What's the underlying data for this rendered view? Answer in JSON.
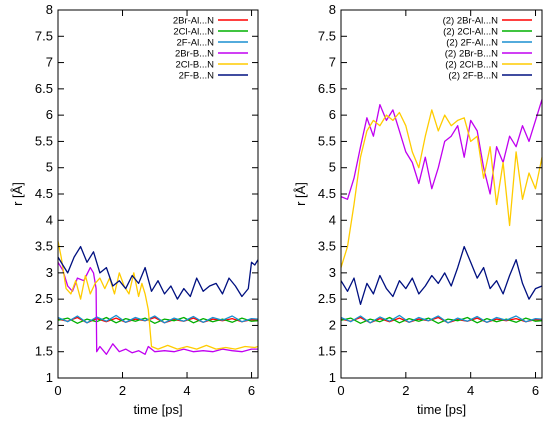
{
  "chart_data": [
    {
      "type": "line",
      "xlabel": "time [ps]",
      "ylabel": "r [Å]",
      "xlim": [
        0,
        6.2
      ],
      "ylim": [
        1,
        8
      ],
      "xticks": [
        0,
        2,
        4,
        6
      ],
      "yticks": [
        1,
        1.5,
        2,
        2.5,
        3,
        3.5,
        4,
        4.5,
        5,
        5.5,
        6,
        6.5,
        7,
        7.5,
        8
      ],
      "ytick_labels": [
        "1",
        "1.5",
        "2",
        "2.5",
        "3",
        "3.5",
        "4",
        "4.5",
        "5",
        "5.5",
        "6",
        "6.5",
        "7",
        "7.5",
        "8"
      ],
      "legend_position": "top-right",
      "series": [
        {
          "name": "2Br-Al...N",
          "color": "#ff0000",
          "x": [
            0,
            0.3,
            0.6,
            0.9,
            1.2,
            1.5,
            1.8,
            2.1,
            2.4,
            2.7,
            3.0,
            3.3,
            3.6,
            3.9,
            4.2,
            4.5,
            4.8,
            5.1,
            5.4,
            5.7,
            6.0,
            6.2
          ],
          "y": [
            2.12,
            2.08,
            2.15,
            2.05,
            2.13,
            2.07,
            2.14,
            2.06,
            2.12,
            2.09,
            2.15,
            2.05,
            2.11,
            2.08,
            2.14,
            2.06,
            2.12,
            2.09,
            2.13,
            2.07,
            2.11,
            2.1
          ]
        },
        {
          "name": "2Cl-Al...N",
          "color": "#00b000",
          "x": [
            0,
            0.3,
            0.6,
            0.9,
            1.2,
            1.5,
            1.8,
            2.1,
            2.4,
            2.7,
            3.0,
            3.3,
            3.6,
            3.9,
            4.2,
            4.5,
            4.8,
            5.1,
            5.4,
            5.7,
            6.0,
            6.2
          ],
          "y": [
            2.1,
            2.14,
            2.04,
            2.12,
            2.07,
            2.15,
            2.05,
            2.13,
            2.08,
            2.14,
            2.04,
            2.12,
            2.09,
            2.15,
            2.05,
            2.13,
            2.07,
            2.12,
            2.06,
            2.14,
            2.08,
            2.09
          ]
        },
        {
          "name": "2F-Al...N",
          "color": "#1a8fd0",
          "x": [
            0,
            0.3,
            0.6,
            0.9,
            1.2,
            1.5,
            1.8,
            2.1,
            2.4,
            2.7,
            3.0,
            3.3,
            3.6,
            3.9,
            4.2,
            4.5,
            4.8,
            5.1,
            5.4,
            5.7,
            6.0,
            6.2
          ],
          "y": [
            2.15,
            2.07,
            2.18,
            2.05,
            2.16,
            2.08,
            2.19,
            2.06,
            2.15,
            2.09,
            2.18,
            2.05,
            2.14,
            2.08,
            2.17,
            2.06,
            2.15,
            2.1,
            2.18,
            2.07,
            2.13,
            2.12
          ]
        },
        {
          "name": "2Br-B...N",
          "color": "#c000f0",
          "x": [
            0,
            0.15,
            0.3,
            0.45,
            0.6,
            0.8,
            1.0,
            1.1,
            1.18,
            1.2,
            1.3,
            1.5,
            1.7,
            1.9,
            2.1,
            2.3,
            2.5,
            2.7,
            2.8,
            3.0,
            3.3,
            3.6,
            3.9,
            4.2,
            4.5,
            4.8,
            5.1,
            5.4,
            5.7,
            6.0,
            6.2
          ],
          "y": [
            3.2,
            3.05,
            2.75,
            2.65,
            2.9,
            2.85,
            3.1,
            3.0,
            2.7,
            1.5,
            1.6,
            1.45,
            1.65,
            1.5,
            1.55,
            1.48,
            1.52,
            1.45,
            1.6,
            1.5,
            1.52,
            1.5,
            1.55,
            1.5,
            1.52,
            1.5,
            1.55,
            1.52,
            1.5,
            1.55,
            1.55
          ]
        },
        {
          "name": "2Cl-B...N",
          "color": "#ffcc00",
          "x": [
            0,
            0.1,
            0.25,
            0.4,
            0.55,
            0.7,
            0.85,
            1.0,
            1.15,
            1.3,
            1.45,
            1.6,
            1.75,
            1.9,
            2.05,
            2.2,
            2.35,
            2.5,
            2.6,
            2.7,
            2.8,
            2.9,
            3.1,
            3.4,
            3.7,
            4.0,
            4.3,
            4.6,
            4.9,
            5.2,
            5.5,
            5.8,
            6.1,
            6.2
          ],
          "y": [
            3.6,
            3.3,
            2.7,
            2.6,
            2.85,
            2.5,
            2.95,
            2.6,
            2.8,
            2.9,
            2.7,
            2.9,
            2.6,
            3.0,
            2.75,
            2.6,
            3.0,
            2.55,
            2.8,
            2.6,
            2.3,
            1.6,
            1.55,
            1.62,
            1.55,
            1.6,
            1.55,
            1.62,
            1.55,
            1.58,
            1.55,
            1.6,
            1.58,
            1.6
          ]
        },
        {
          "name": "2F-B...N",
          "color": "#001080",
          "x": [
            0,
            0.15,
            0.3,
            0.5,
            0.7,
            0.9,
            1.1,
            1.3,
            1.5,
            1.7,
            1.9,
            2.1,
            2.3,
            2.5,
            2.7,
            2.9,
            3.1,
            3.3,
            3.5,
            3.7,
            3.9,
            4.1,
            4.3,
            4.5,
            4.7,
            4.9,
            5.1,
            5.3,
            5.5,
            5.7,
            5.9,
            6.0,
            6.1,
            6.2
          ],
          "y": [
            3.3,
            3.15,
            3.0,
            3.3,
            3.5,
            3.2,
            3.4,
            3.0,
            3.1,
            2.75,
            2.85,
            2.7,
            2.95,
            2.8,
            3.1,
            2.65,
            2.85,
            2.6,
            2.75,
            2.5,
            2.7,
            2.55,
            2.9,
            2.65,
            2.75,
            2.8,
            2.6,
            2.9,
            2.75,
            2.55,
            2.7,
            3.2,
            3.15,
            3.25
          ]
        }
      ]
    },
    {
      "type": "line",
      "xlabel": "time [ps]",
      "ylabel": "r [Å]",
      "xlim": [
        0,
        6.2
      ],
      "ylim": [
        1,
        8
      ],
      "xticks": [
        0,
        2,
        4,
        6
      ],
      "yticks": [
        1,
        1.5,
        2,
        2.5,
        3,
        3.5,
        4,
        4.5,
        5,
        5.5,
        6,
        6.5,
        7,
        7.5,
        8
      ],
      "ytick_labels": [
        "1",
        "1.5",
        "2",
        "2.5",
        "3",
        "3.5",
        "4",
        "4.5",
        "5",
        "5.5",
        "6",
        "6.5",
        "7",
        "7.5",
        "8"
      ],
      "legend_position": "top-right",
      "series": [
        {
          "name": "(2) 2Br-Al...N",
          "color": "#ff0000",
          "x": [
            0,
            0.3,
            0.6,
            0.9,
            1.2,
            1.5,
            1.8,
            2.1,
            2.4,
            2.7,
            3.0,
            3.3,
            3.6,
            3.9,
            4.2,
            4.5,
            4.8,
            5.1,
            5.4,
            5.7,
            6.0,
            6.2
          ],
          "y": [
            2.12,
            2.08,
            2.15,
            2.05,
            2.13,
            2.07,
            2.14,
            2.06,
            2.12,
            2.09,
            2.15,
            2.05,
            2.11,
            2.08,
            2.14,
            2.06,
            2.12,
            2.09,
            2.13,
            2.07,
            2.11,
            2.1
          ]
        },
        {
          "name": "(2) 2Cl-Al...N",
          "color": "#00b000",
          "x": [
            0,
            0.3,
            0.6,
            0.9,
            1.2,
            1.5,
            1.8,
            2.1,
            2.4,
            2.7,
            3.0,
            3.3,
            3.6,
            3.9,
            4.2,
            4.5,
            4.8,
            5.1,
            5.4,
            5.7,
            6.0,
            6.2
          ],
          "y": [
            2.1,
            2.14,
            2.04,
            2.12,
            2.07,
            2.15,
            2.05,
            2.13,
            2.08,
            2.14,
            2.04,
            2.12,
            2.09,
            2.15,
            2.05,
            2.13,
            2.07,
            2.12,
            2.06,
            2.14,
            2.08,
            2.09
          ]
        },
        {
          "name": "(2) 2F-Al...N",
          "color": "#1a8fd0",
          "x": [
            0,
            0.3,
            0.6,
            0.9,
            1.2,
            1.5,
            1.8,
            2.1,
            2.4,
            2.7,
            3.0,
            3.3,
            3.6,
            3.9,
            4.2,
            4.5,
            4.8,
            5.1,
            5.4,
            5.7,
            6.0,
            6.2
          ],
          "y": [
            2.15,
            2.07,
            2.18,
            2.05,
            2.16,
            2.08,
            2.19,
            2.06,
            2.15,
            2.09,
            2.18,
            2.05,
            2.14,
            2.08,
            2.17,
            2.06,
            2.15,
            2.1,
            2.18,
            2.07,
            2.13,
            2.12
          ]
        },
        {
          "name": "(2) 2Br-B...N",
          "color": "#c000f0",
          "x": [
            0,
            0.2,
            0.4,
            0.6,
            0.8,
            1.0,
            1.2,
            1.4,
            1.6,
            1.8,
            2.0,
            2.2,
            2.4,
            2.6,
            2.8,
            3.0,
            3.2,
            3.4,
            3.6,
            3.8,
            4.0,
            4.2,
            4.4,
            4.6,
            4.8,
            5.0,
            5.2,
            5.4,
            5.6,
            5.8,
            6.0,
            6.2
          ],
          "y": [
            4.45,
            4.4,
            4.8,
            5.4,
            5.95,
            5.6,
            6.2,
            5.9,
            6.1,
            5.7,
            5.3,
            5.1,
            4.7,
            5.2,
            4.6,
            5.0,
            5.5,
            5.6,
            5.8,
            5.2,
            5.9,
            5.7,
            5.0,
            4.5,
            5.4,
            5.1,
            5.6,
            5.4,
            5.8,
            5.5,
            5.9,
            6.3
          ]
        },
        {
          "name": "(2) 2Cl-B...N",
          "color": "#ffcc00",
          "x": [
            0,
            0.2,
            0.4,
            0.6,
            0.8,
            1.0,
            1.2,
            1.4,
            1.6,
            1.8,
            2.0,
            2.2,
            2.4,
            2.6,
            2.8,
            3.0,
            3.2,
            3.4,
            3.6,
            3.8,
            4.0,
            4.2,
            4.4,
            4.6,
            4.8,
            5.0,
            5.2,
            5.4,
            5.6,
            5.8,
            6.0,
            6.2
          ],
          "y": [
            3.1,
            3.5,
            4.3,
            5.2,
            5.7,
            5.9,
            5.8,
            6.0,
            5.9,
            6.05,
            5.8,
            5.3,
            5.0,
            5.6,
            6.1,
            5.7,
            6.0,
            5.8,
            5.9,
            5.95,
            5.5,
            5.6,
            4.8,
            5.4,
            4.3,
            5.1,
            3.9,
            5.3,
            4.4,
            4.9,
            4.6,
            5.2
          ]
        },
        {
          "name": "(2) 2F-B...N",
          "color": "#001080",
          "x": [
            0,
            0.2,
            0.4,
            0.6,
            0.8,
            1.0,
            1.2,
            1.4,
            1.6,
            1.8,
            2.0,
            2.2,
            2.4,
            2.6,
            2.8,
            3.0,
            3.2,
            3.4,
            3.6,
            3.8,
            4.0,
            4.2,
            4.4,
            4.6,
            4.8,
            5.0,
            5.2,
            5.4,
            5.6,
            5.8,
            6.0,
            6.2
          ],
          "y": [
            2.85,
            2.65,
            2.9,
            2.4,
            2.8,
            2.6,
            2.95,
            2.7,
            2.55,
            2.85,
            2.7,
            2.9,
            2.6,
            2.75,
            2.95,
            2.8,
            3.0,
            2.75,
            3.1,
            3.5,
            3.2,
            2.9,
            3.1,
            2.7,
            2.85,
            2.6,
            2.95,
            3.25,
            2.8,
            2.5,
            2.7,
            2.75
          ]
        }
      ]
    }
  ]
}
